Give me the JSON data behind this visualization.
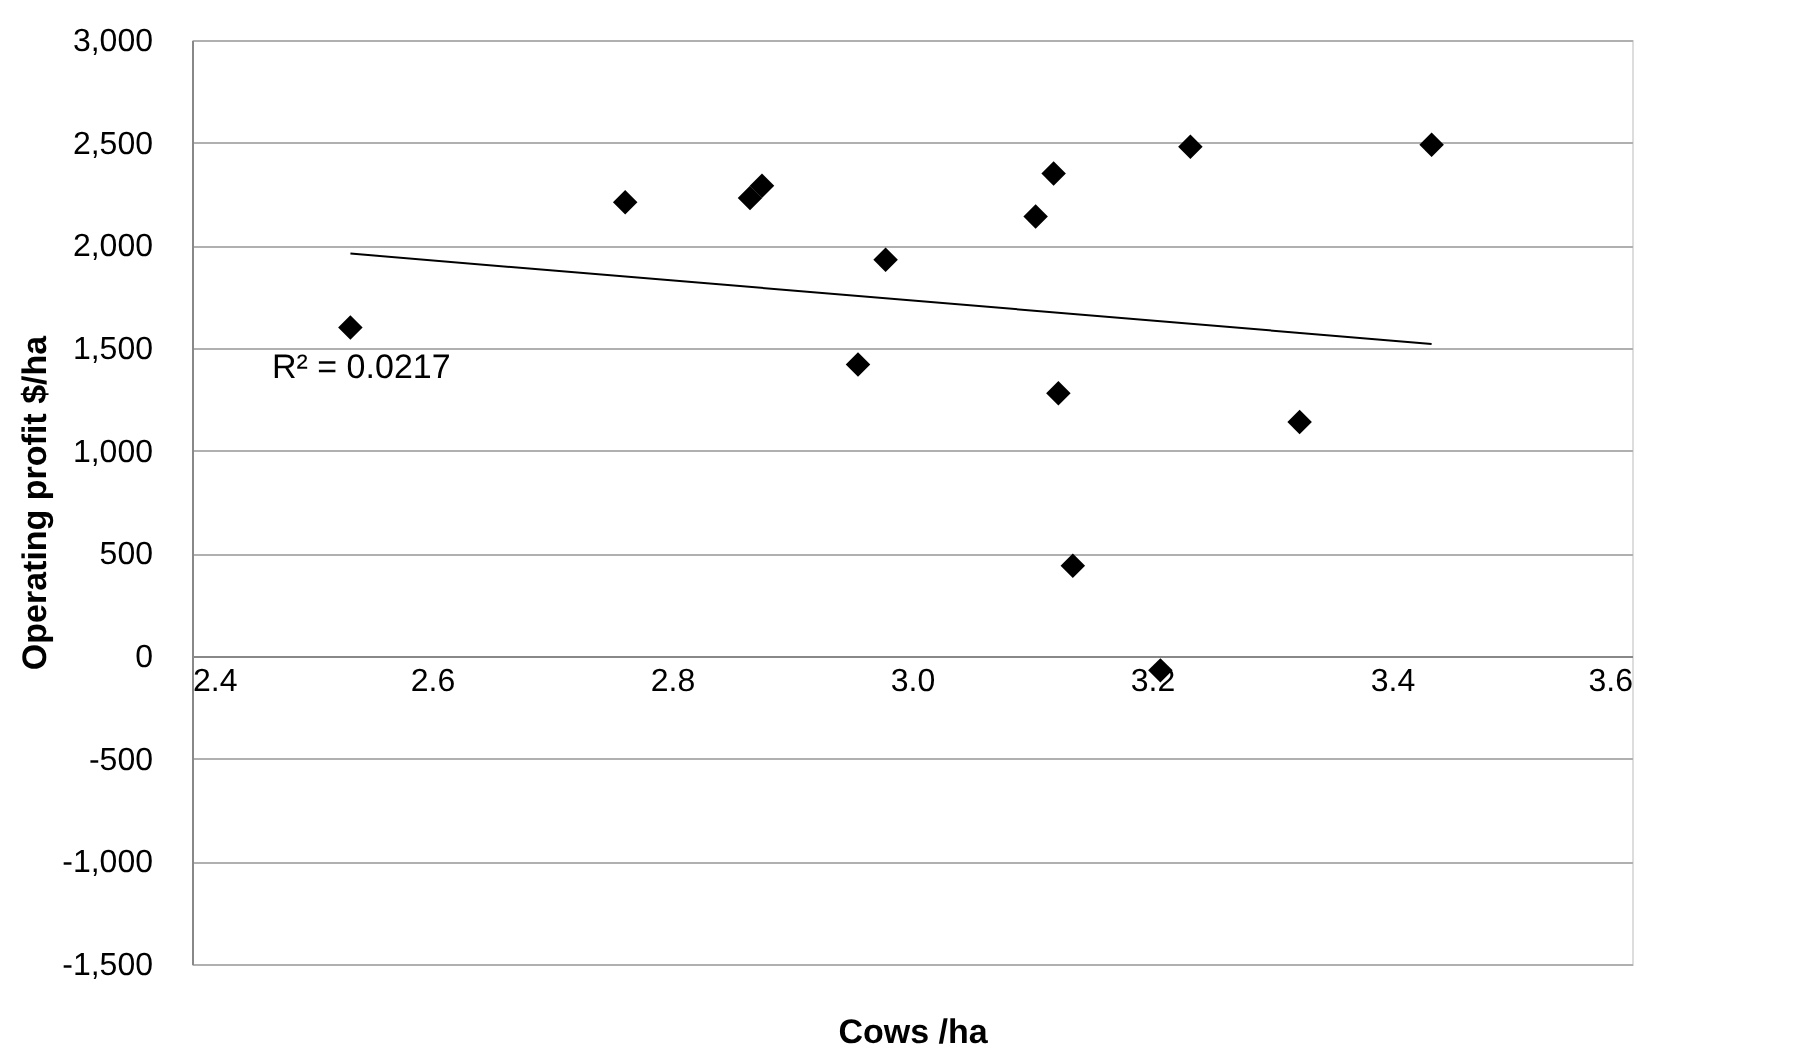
{
  "chart_data": {
    "type": "scatter",
    "xlabel": "Cows /ha",
    "ylabel": "Operating profit $/ha",
    "xlim": [
      2.4,
      3.6
    ],
    "xticks": [
      2.4,
      2.6,
      2.8,
      {
        "value": 3.0,
        "label": "3.0"
      },
      3.2,
      3.4,
      3.6
    ],
    "ylim": [
      -1500,
      3000
    ],
    "yticks": [
      {
        "value": -1500,
        "label": "-1,500"
      },
      {
        "value": -1000,
        "label": "-1,000"
      },
      -500,
      0,
      500,
      {
        "value": 1000,
        "label": "1,000"
      },
      {
        "value": 1500,
        "label": "1,500"
      },
      {
        "value": 2000,
        "label": "2,000"
      },
      {
        "value": 2500,
        "label": "2,500"
      },
      {
        "value": 3000,
        "label": "3,000"
      }
    ],
    "grid": "y",
    "series": [
      {
        "marker": "diamond",
        "color": "#000000",
        "x": [
          2.532,
          2.761,
          2.865,
          2.875,
          2.955,
          2.978,
          3.103,
          3.118,
          3.122,
          3.134,
          3.207,
          3.232,
          3.323,
          3.433
        ],
        "values": [
          1600,
          2210,
          2230,
          2290,
          1420,
          1930,
          2140,
          2350,
          1280,
          440,
          -70,
          2480,
          1140,
          2490
        ]
      },
      {
        "type": "line",
        "color": "#000000",
        "x": [
          2.532,
          3.433
        ],
        "values": [
          1960,
          1520
        ]
      }
    ],
    "annotations": [
      "R² = 0.0217"
    ]
  }
}
